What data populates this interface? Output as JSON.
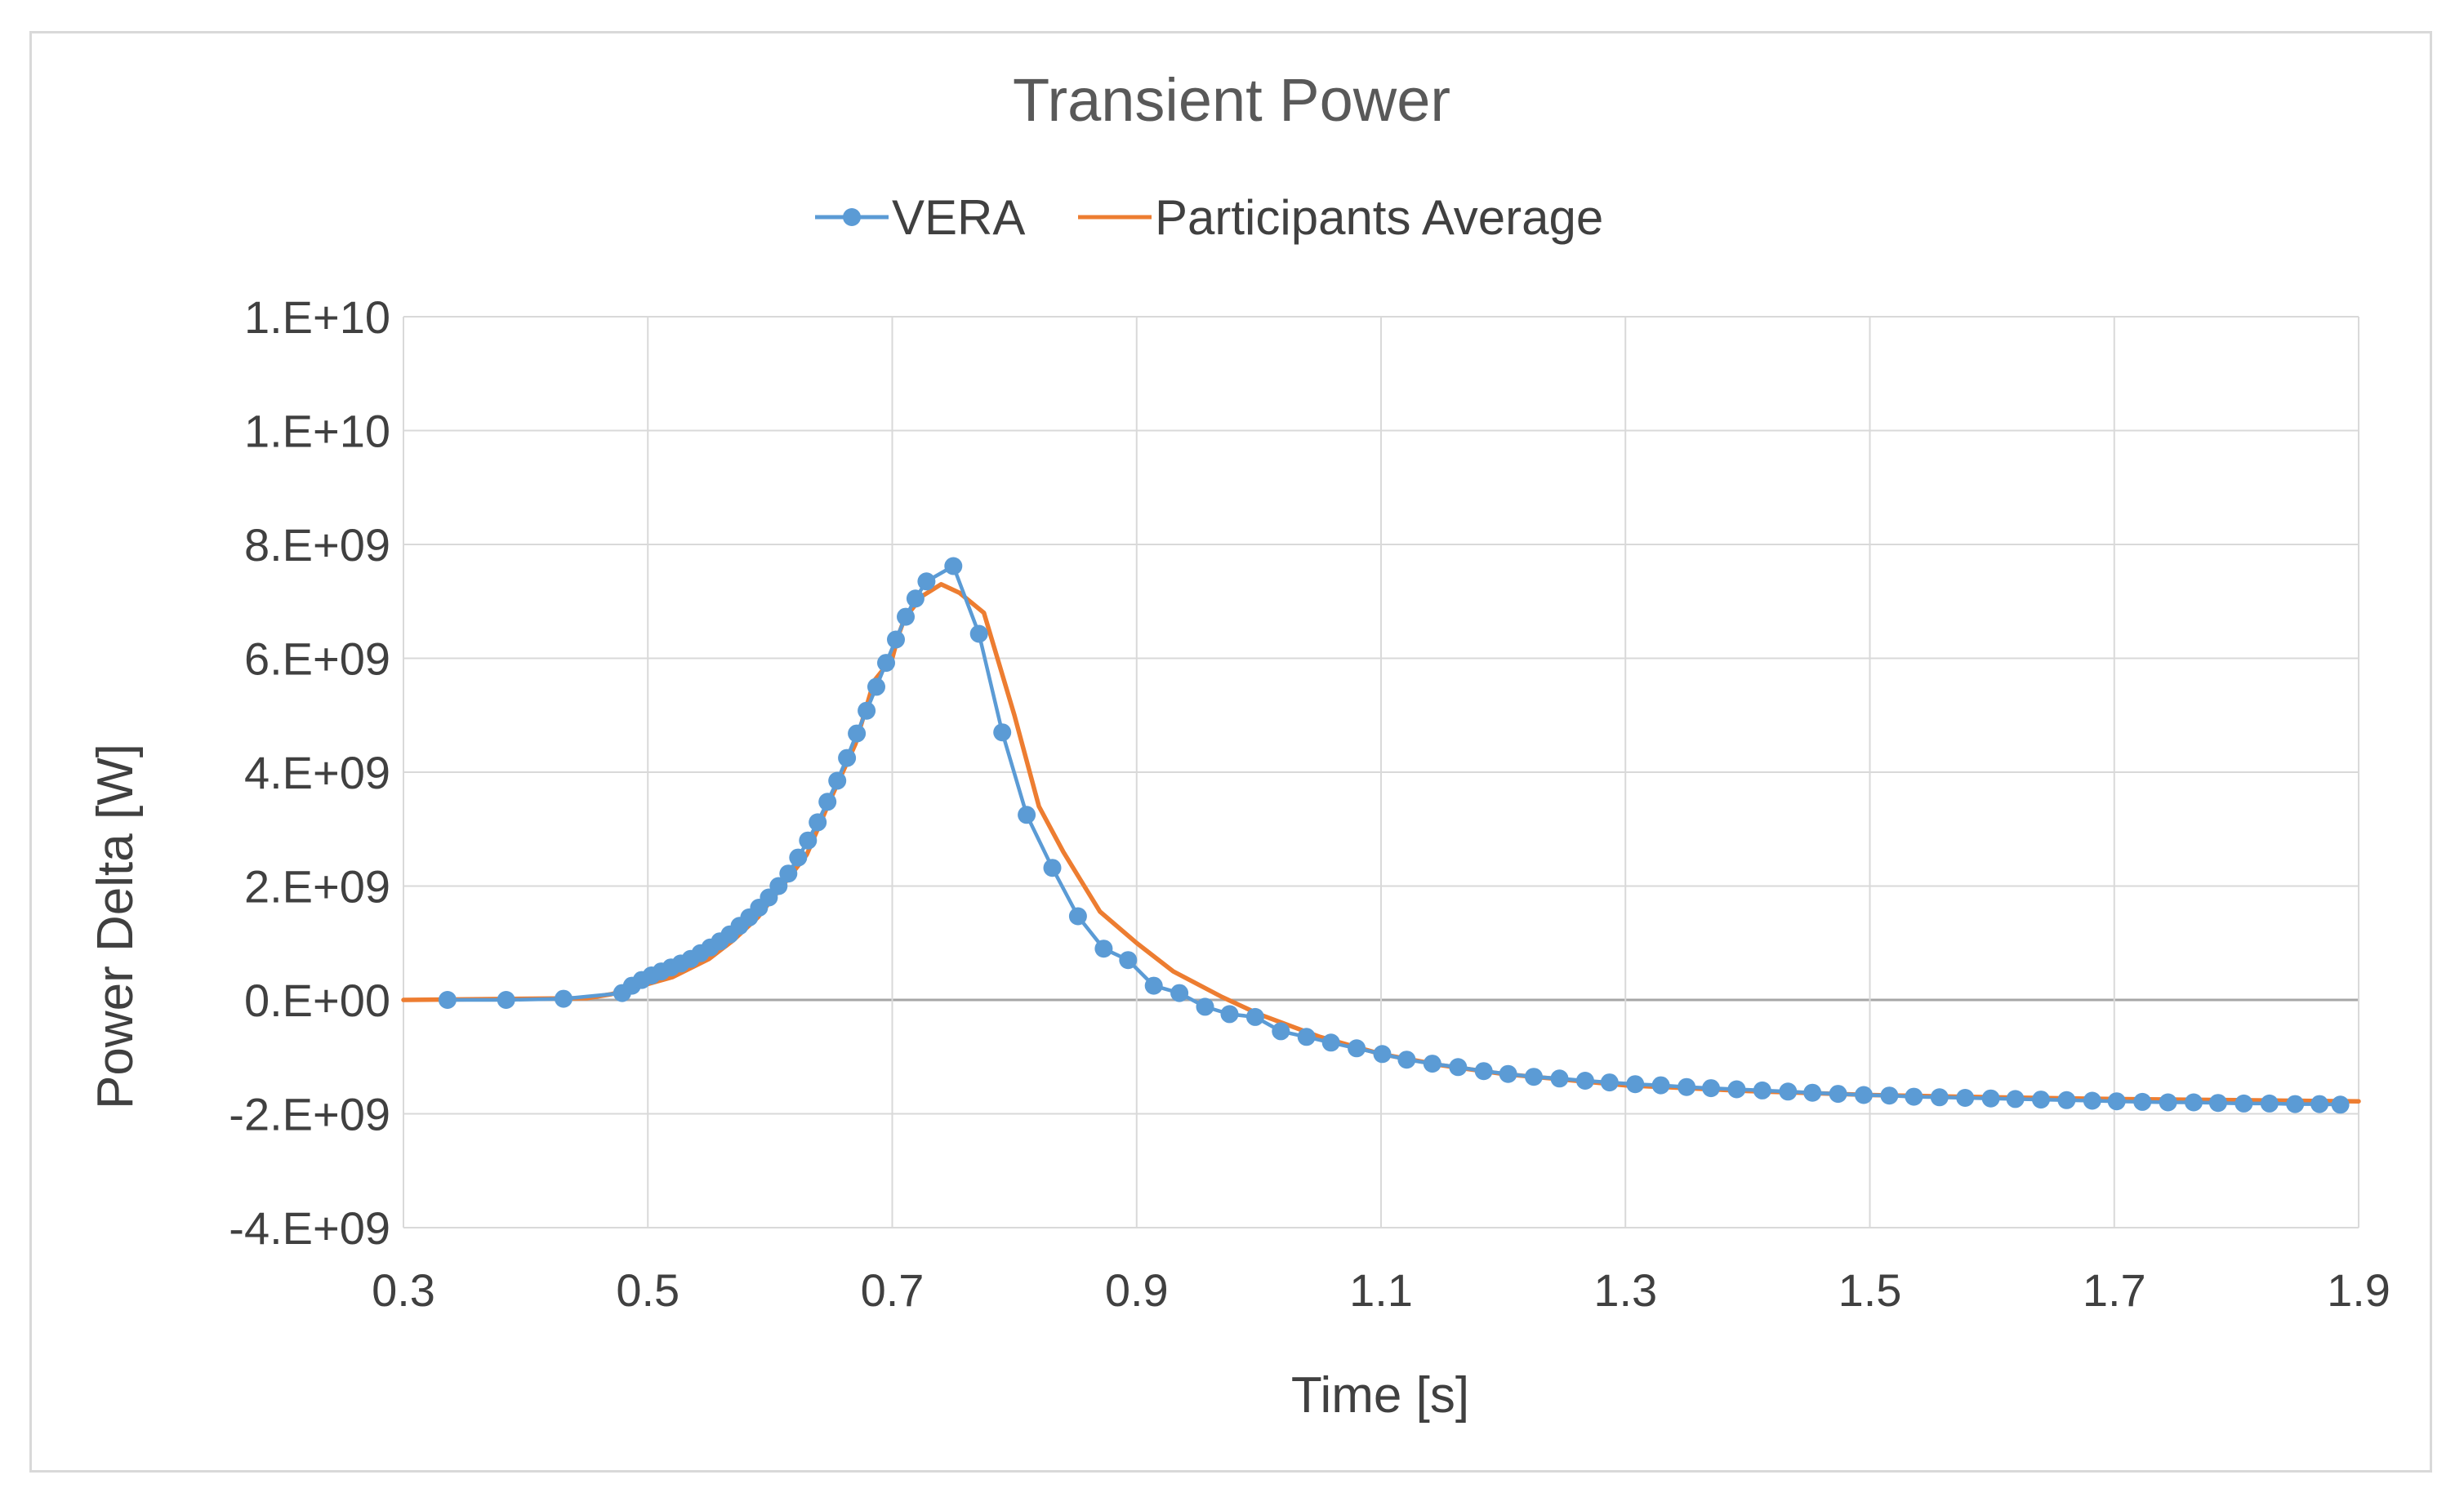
{
  "chart_data": {
    "type": "line",
    "title": "Transient Power",
    "xlabel": "Time [s]",
    "ylabel": "Power Delta [W]",
    "xlim": [
      0.3,
      1.9
    ],
    "ylim": [
      -4000000000,
      12000000000
    ],
    "x_ticks": [
      {
        "value": 0.3,
        "label": "0.3"
      },
      {
        "value": 0.5,
        "label": "0.5"
      },
      {
        "value": 0.7,
        "label": "0.7"
      },
      {
        "value": 0.9,
        "label": "0.9"
      },
      {
        "value": 1.1,
        "label": "1.1"
      },
      {
        "value": 1.3,
        "label": "1.3"
      },
      {
        "value": 1.5,
        "label": "1.5"
      },
      {
        "value": 1.7,
        "label": "1.7"
      },
      {
        "value": 1.9,
        "label": "1.9"
      }
    ],
    "y_ticks": [
      {
        "value": -4000000000,
        "label": "-4.E+09"
      },
      {
        "value": -2000000000,
        "label": "-2.E+09"
      },
      {
        "value": 0,
        "label": "0.E+00"
      },
      {
        "value": 2000000000,
        "label": "2.E+09"
      },
      {
        "value": 4000000000,
        "label": "4.E+09"
      },
      {
        "value": 6000000000,
        "label": "6.E+09"
      },
      {
        "value": 8000000000,
        "label": "8.E+09"
      },
      {
        "value": 10000000000,
        "label": "1.E+10"
      },
      {
        "value": 12000000000,
        "label": "1.E+10"
      }
    ],
    "grid": true,
    "legend_position": "top-center",
    "series": [
      {
        "name": "VERA",
        "color": "#5b9bd5",
        "marker": "circle",
        "points": [
          [
            0.336,
            0.0
          ],
          [
            0.384,
            0.0
          ],
          [
            0.431,
            20000000.0
          ],
          [
            0.479,
            120000000.0
          ],
          [
            0.487,
            250000000.0
          ],
          [
            0.495,
            350000000.0
          ],
          [
            0.503,
            430000000.0
          ],
          [
            0.511,
            500000000.0
          ],
          [
            0.519,
            570000000.0
          ],
          [
            0.527,
            640000000.0
          ],
          [
            0.535,
            720000000.0
          ],
          [
            0.543,
            820000000.0
          ],
          [
            0.551,
            920000000.0
          ],
          [
            0.559,
            1030000000.0
          ],
          [
            0.567,
            1150000000.0
          ],
          [
            0.575,
            1300000000.0
          ],
          [
            0.583,
            1450000000.0
          ],
          [
            0.591,
            1620000000.0
          ],
          [
            0.599,
            1800000000.0
          ],
          [
            0.607,
            2000000000.0
          ],
          [
            0.615,
            2220000000.0
          ],
          [
            0.623,
            2500000000.0
          ],
          [
            0.631,
            2800000000.0
          ],
          [
            0.639,
            3120000000.0
          ],
          [
            0.647,
            3480000000.0
          ],
          [
            0.655,
            3850000000.0
          ],
          [
            0.663,
            4250000000.0
          ],
          [
            0.671,
            4680000000.0
          ],
          [
            0.679,
            5080000000.0
          ],
          [
            0.687,
            5500000000.0
          ],
          [
            0.695,
            5920000000.0
          ],
          [
            0.703,
            6330000000.0
          ],
          [
            0.711,
            6730000000.0
          ],
          [
            0.719,
            7050000000.0
          ],
          [
            0.728,
            7350000000.0
          ],
          [
            0.75,
            7620000000.0
          ],
          [
            0.771,
            6430000000.0
          ],
          [
            0.79,
            4700000000.0
          ],
          [
            0.81,
            3250000000.0
          ],
          [
            0.831,
            2320000000.0
          ],
          [
            0.852,
            1470000000.0
          ],
          [
            0.873,
            900000000.0
          ],
          [
            0.893,
            700000000.0
          ],
          [
            0.914,
            250000000.0
          ],
          [
            0.935,
            120000000.0
          ],
          [
            0.956,
            -120000000.0
          ],
          [
            0.976,
            -250000000.0
          ],
          [
            0.997,
            -300000000.0
          ],
          [
            1.018,
            -550000000.0
          ],
          [
            1.039,
            -650000000.0
          ],
          [
            1.059,
            -750000000.0
          ],
          [
            1.08,
            -850000000.0
          ],
          [
            1.101,
            -950000000.0
          ],
          [
            1.121,
            -1050000000.0
          ],
          [
            1.142,
            -1120000000.0
          ],
          [
            1.163,
            -1180000000.0
          ],
          [
            1.184,
            -1250000000.0
          ],
          [
            1.204,
            -1300000000.0
          ],
          [
            1.225,
            -1350000000.0
          ],
          [
            1.246,
            -1380000000.0
          ],
          [
            1.267,
            -1420000000.0
          ],
          [
            1.287,
            -1450000000.0
          ],
          [
            1.308,
            -1480000000.0
          ],
          [
            1.329,
            -1500000000.0
          ],
          [
            1.35,
            -1530000000.0
          ],
          [
            1.37,
            -1550000000.0
          ],
          [
            1.391,
            -1570000000.0
          ],
          [
            1.412,
            -1590000000.0
          ],
          [
            1.433,
            -1610000000.0
          ],
          [
            1.453,
            -1630000000.0
          ],
          [
            1.474,
            -1650000000.0
          ],
          [
            1.495,
            -1670000000.0
          ],
          [
            1.516,
            -1680000000.0
          ],
          [
            1.536,
            -1700000000.0
          ],
          [
            1.557,
            -1710000000.0
          ],
          [
            1.578,
            -1720000000.0
          ],
          [
            1.599,
            -1730000000.0
          ],
          [
            1.619,
            -1740000000.0
          ],
          [
            1.64,
            -1750000000.0
          ],
          [
            1.661,
            -1760000000.0
          ],
          [
            1.682,
            -1770000000.0
          ],
          [
            1.702,
            -1780000000.0
          ],
          [
            1.723,
            -1790000000.0
          ],
          [
            1.744,
            -1800000000.0
          ],
          [
            1.765,
            -1800000000.0
          ],
          [
            1.785,
            -1810000000.0
          ],
          [
            1.806,
            -1820000000.0
          ],
          [
            1.827,
            -1820000000.0
          ],
          [
            1.848,
            -1830000000.0
          ],
          [
            1.868,
            -1830000000.0
          ],
          [
            1.885,
            -1840000000.0
          ]
        ]
      },
      {
        "name": "Participants Average",
        "color": "#ed7d31",
        "marker": "none",
        "points": [
          [
            0.3,
            0.0
          ],
          [
            0.45,
            30000000.0
          ],
          [
            0.47,
            100000000.0
          ],
          [
            0.5,
            280000000.0
          ],
          [
            0.52,
            400000000.0
          ],
          [
            0.55,
            720000000.0
          ],
          [
            0.57,
            1050000000.0
          ],
          [
            0.59,
            1450000000.0
          ],
          [
            0.61,
            2000000000.0
          ],
          [
            0.63,
            2550000000.0
          ],
          [
            0.65,
            3550000000.0
          ],
          [
            0.67,
            4500000000.0
          ],
          [
            0.685,
            5600000000.0
          ],
          [
            0.7,
            6000000000.0
          ],
          [
            0.705,
            6400000000.0
          ],
          [
            0.71,
            6700000000.0
          ],
          [
            0.725,
            7100000000.0
          ],
          [
            0.74,
            7300000000.0
          ],
          [
            0.755,
            7150000000.0
          ],
          [
            0.775,
            6800000000.0
          ],
          [
            0.8,
            5000000000.0
          ],
          [
            0.82,
            3400000000.0
          ],
          [
            0.84,
            2600000000.0
          ],
          [
            0.86,
            1900000000.0
          ],
          [
            0.87,
            1550000000.0
          ],
          [
            0.9,
            1000000000.0
          ],
          [
            0.93,
            500000000.0
          ],
          [
            0.97,
            50000000.0
          ],
          [
            1.0,
            -250000000.0
          ],
          [
            1.05,
            -650000000.0
          ],
          [
            1.1,
            -950000000.0
          ],
          [
            1.15,
            -1150000000.0
          ],
          [
            1.2,
            -1300000000.0
          ],
          [
            1.3,
            -1500000000.0
          ],
          [
            1.4,
            -1600000000.0
          ],
          [
            1.5,
            -1670000000.0
          ],
          [
            1.6,
            -1710000000.0
          ],
          [
            1.7,
            -1740000000.0
          ],
          [
            1.8,
            -1760000000.0
          ],
          [
            1.9,
            -1780000000.0
          ]
        ]
      }
    ]
  }
}
